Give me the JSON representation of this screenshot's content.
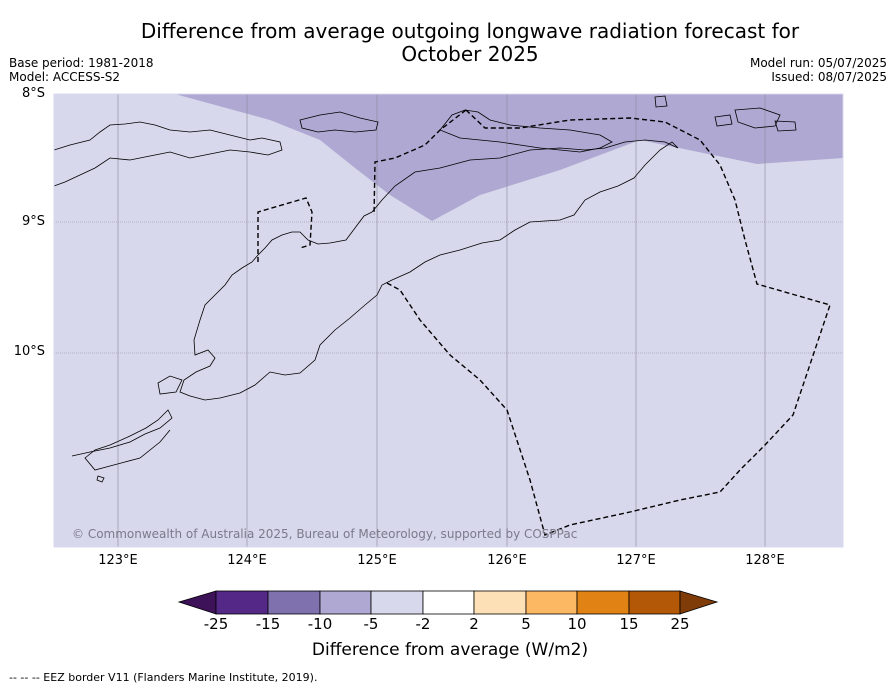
{
  "title": "Difference from average outgoing longwave radiation forecast for October 2025",
  "base_period": "Base period: 1981-2018",
  "model": "Model: ACCESS-S2",
  "model_run": "Model run: 05/07/2025",
  "issued": "Issued: 08/07/2025",
  "lat_labels": [
    "8°S",
    "9°S",
    "10°S"
  ],
  "lon_labels": [
    "123°E",
    "124°E",
    "125°E",
    "126°E",
    "127°E",
    "128°E"
  ],
  "credit": "© Commonwealth of Australia 2025, Bureau of Meteorology, supported by COSPPac",
  "colorbar": {
    "title": "Difference from average (W/m2)",
    "ticks": [
      "-25",
      "-15",
      "-10",
      "-5",
      "-2",
      "2",
      "5",
      "10",
      "15",
      "25"
    ],
    "colors": [
      "#3d1259",
      "#542887",
      "#7e71ad",
      "#aea8d2",
      "#d7d8eb",
      "#ffffff",
      "#fee0b6",
      "#fdb863",
      "#e08214",
      "#b35806",
      "#7f3b08"
    ]
  },
  "footnote": "--  --  -- EEZ border V11 (Flanders Marine Institute, 2019).",
  "map_colors": {
    "background_fill": "#d7d8eb",
    "anomaly_fill": "#aea8d2"
  }
}
